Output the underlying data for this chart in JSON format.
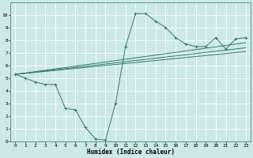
{
  "xlabel": "Humidex (Indice chaleur)",
  "bg_color": "#cce8e8",
  "grid_color": "#ffffff",
  "line_color": "#2e7d6e",
  "xlim": [
    -0.5,
    23.5
  ],
  "ylim": [
    0,
    11
  ],
  "xticks": [
    0,
    1,
    2,
    3,
    4,
    5,
    6,
    7,
    8,
    9,
    10,
    11,
    12,
    13,
    14,
    15,
    16,
    17,
    18,
    19,
    20,
    21,
    22,
    23
  ],
  "yticks": [
    0,
    1,
    2,
    3,
    4,
    5,
    6,
    7,
    8,
    9,
    10
  ],
  "series_main": {
    "x": [
      0,
      1,
      2,
      3,
      4,
      5,
      6,
      7,
      8,
      9,
      10,
      11,
      12,
      13,
      14,
      15,
      16,
      17,
      18,
      19,
      20,
      21,
      22,
      23
    ],
    "y": [
      5.3,
      5.0,
      4.7,
      4.5,
      4.5,
      2.6,
      2.5,
      1.1,
      0.2,
      0.1,
      3.0,
      7.5,
      10.1,
      10.1,
      9.5,
      9.0,
      8.2,
      7.7,
      7.5,
      7.5,
      8.2,
      7.3,
      8.1,
      8.2
    ]
  },
  "trend_lines": [
    {
      "x": [
        0,
        23
      ],
      "y": [
        5.3,
        7.8
      ]
    },
    {
      "x": [
        0,
        23
      ],
      "y": [
        5.3,
        7.4
      ]
    },
    {
      "x": [
        0,
        23
      ],
      "y": [
        5.3,
        7.1
      ]
    }
  ],
  "xlabel_fontsize": 5.5,
  "tick_fontsize": 4.5,
  "line_width": 0.7,
  "marker_size": 2.5
}
